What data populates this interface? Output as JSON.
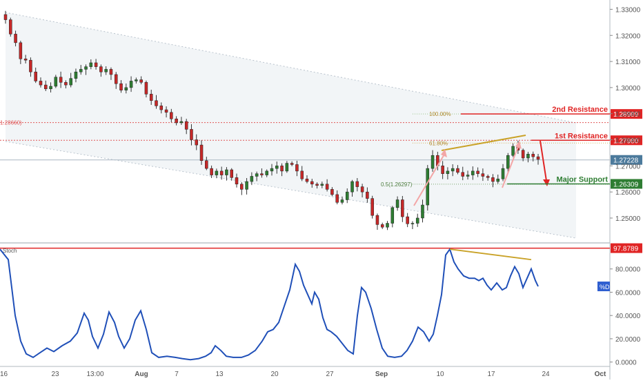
{
  "chart_data": {
    "type": "candlestick",
    "price_axis": {
      "ticks": [
        "1.33000",
        "1.32000",
        "1.31000",
        "1.30000",
        "1.29000",
        "1.28000",
        "1.27000",
        "1.26000",
        "1.25000"
      ],
      "range": [
        1.241,
        1.3325
      ]
    },
    "stoch_axis": {
      "ticks": [
        "80.0000",
        "60.0000",
        "40.0000",
        "20.0000",
        "0.0000"
      ],
      "range": [
        -2,
        100
      ]
    },
    "x_axis": {
      "labels": [
        "16",
        "23",
        "13:00",
        "Aug",
        "7",
        "13",
        "20",
        "27",
        "Sep",
        "10",
        "17",
        "24",
        "Oct"
      ],
      "bold": [
        "Aug",
        "Sep",
        "Oct"
      ]
    },
    "levels": [
      {
        "id": "2nd-resistance",
        "label": "2nd Resistance",
        "value": "1.28989",
        "price": 1.28989,
        "color": "#e02424"
      },
      {
        "id": "1st-resistance",
        "label": "1st Resistance",
        "value": "1.27980",
        "price": 1.2798,
        "color": "#e02424"
      },
      {
        "id": "major-support",
        "label": "Major Support",
        "value": "1.26309",
        "price": 1.26309,
        "color": "#2e7d32"
      }
    ],
    "current_price": {
      "value": "1.27228",
      "price": 1.27228,
      "color": "#4c7a9c"
    },
    "fib_labels": [
      {
        "text": "100.00%",
        "price": 1.28989
      },
      {
        "text": "61.80%",
        "price": 1.2798
      },
      {
        "text": "0.5(1.26297)",
        "price": 1.26297
      }
    ],
    "left_level": {
      "text": "1.28660)",
      "price": 1.2866
    },
    "stoch_level": {
      "value": "97.8789",
      "level": 97.8789
    },
    "stoch_badge": "%D",
    "stoch_title": "Stoch",
    "candles_close": [
      1.326,
      1.3205,
      1.3172,
      1.311,
      1.3105,
      1.306,
      1.3025,
      1.301,
      1.2995,
      1.3005,
      1.304,
      1.302,
      1.301,
      1.3035,
      1.306,
      1.307,
      1.308,
      1.3095,
      1.308,
      1.306,
      1.307,
      1.305,
      1.3015,
      1.299,
      1.3,
      1.3025,
      1.303,
      1.302,
      1.2975,
      1.295,
      1.293,
      1.2915,
      1.2905,
      1.288,
      1.2865,
      1.287,
      1.284,
      1.28,
      1.278,
      1.272,
      1.269,
      1.2665,
      1.268,
      1.2665,
      1.2685,
      1.2655,
      1.263,
      1.261,
      1.264,
      1.266,
      1.267,
      1.2665,
      1.268,
      1.269,
      1.27,
      1.268,
      1.271,
      1.2705,
      1.268,
      1.265,
      1.264,
      1.263,
      1.2625,
      1.263,
      1.261,
      1.259,
      1.256,
      1.257,
      1.26,
      1.264,
      1.262,
      1.26,
      1.2575,
      1.251,
      1.2475,
      1.2465,
      1.248,
      1.254,
      1.257,
      1.2505,
      1.2478,
      1.248,
      1.25,
      1.255,
      1.269,
      1.274,
      1.27,
      1.267,
      1.268,
      1.269,
      1.2675,
      1.266,
      1.2665,
      1.268,
      1.267,
      1.266,
      1.2655,
      1.264,
      1.265,
      1.269,
      1.274,
      1.2775,
      1.276,
      1.273,
      1.2745,
      1.2735,
      1.2725
    ]
  }
}
